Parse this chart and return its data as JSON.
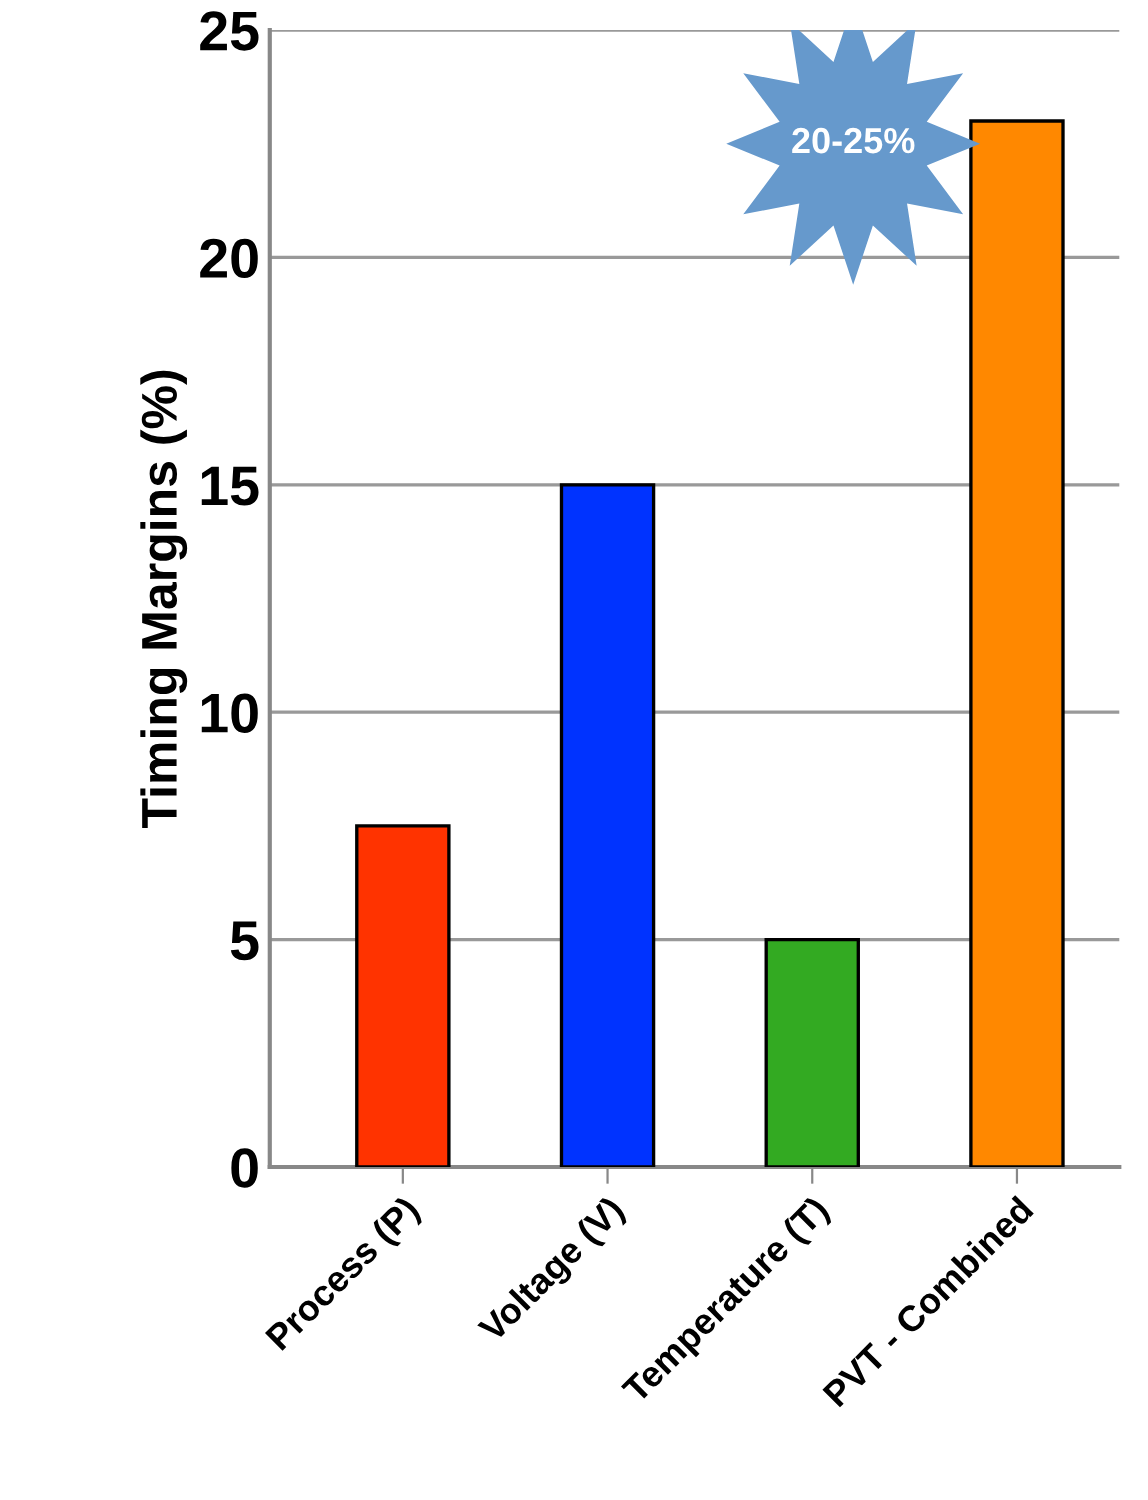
{
  "chart_data": {
    "type": "bar",
    "categories": [
      "Process (P)",
      "Voltage (V)",
      "Temperature (T)",
      "PVT - Combined"
    ],
    "values": [
      7.5,
      15,
      5,
      23
    ],
    "colors": [
      "#ff3300",
      "#0033ff",
      "#33aa22",
      "#ff8800"
    ],
    "ylabel": "Timing Margins (%)",
    "ylim": [
      0,
      25
    ],
    "yticks": [
      0,
      5,
      10,
      15,
      20,
      25
    ],
    "grid": "y",
    "annotations": [
      "20-25%"
    ]
  }
}
